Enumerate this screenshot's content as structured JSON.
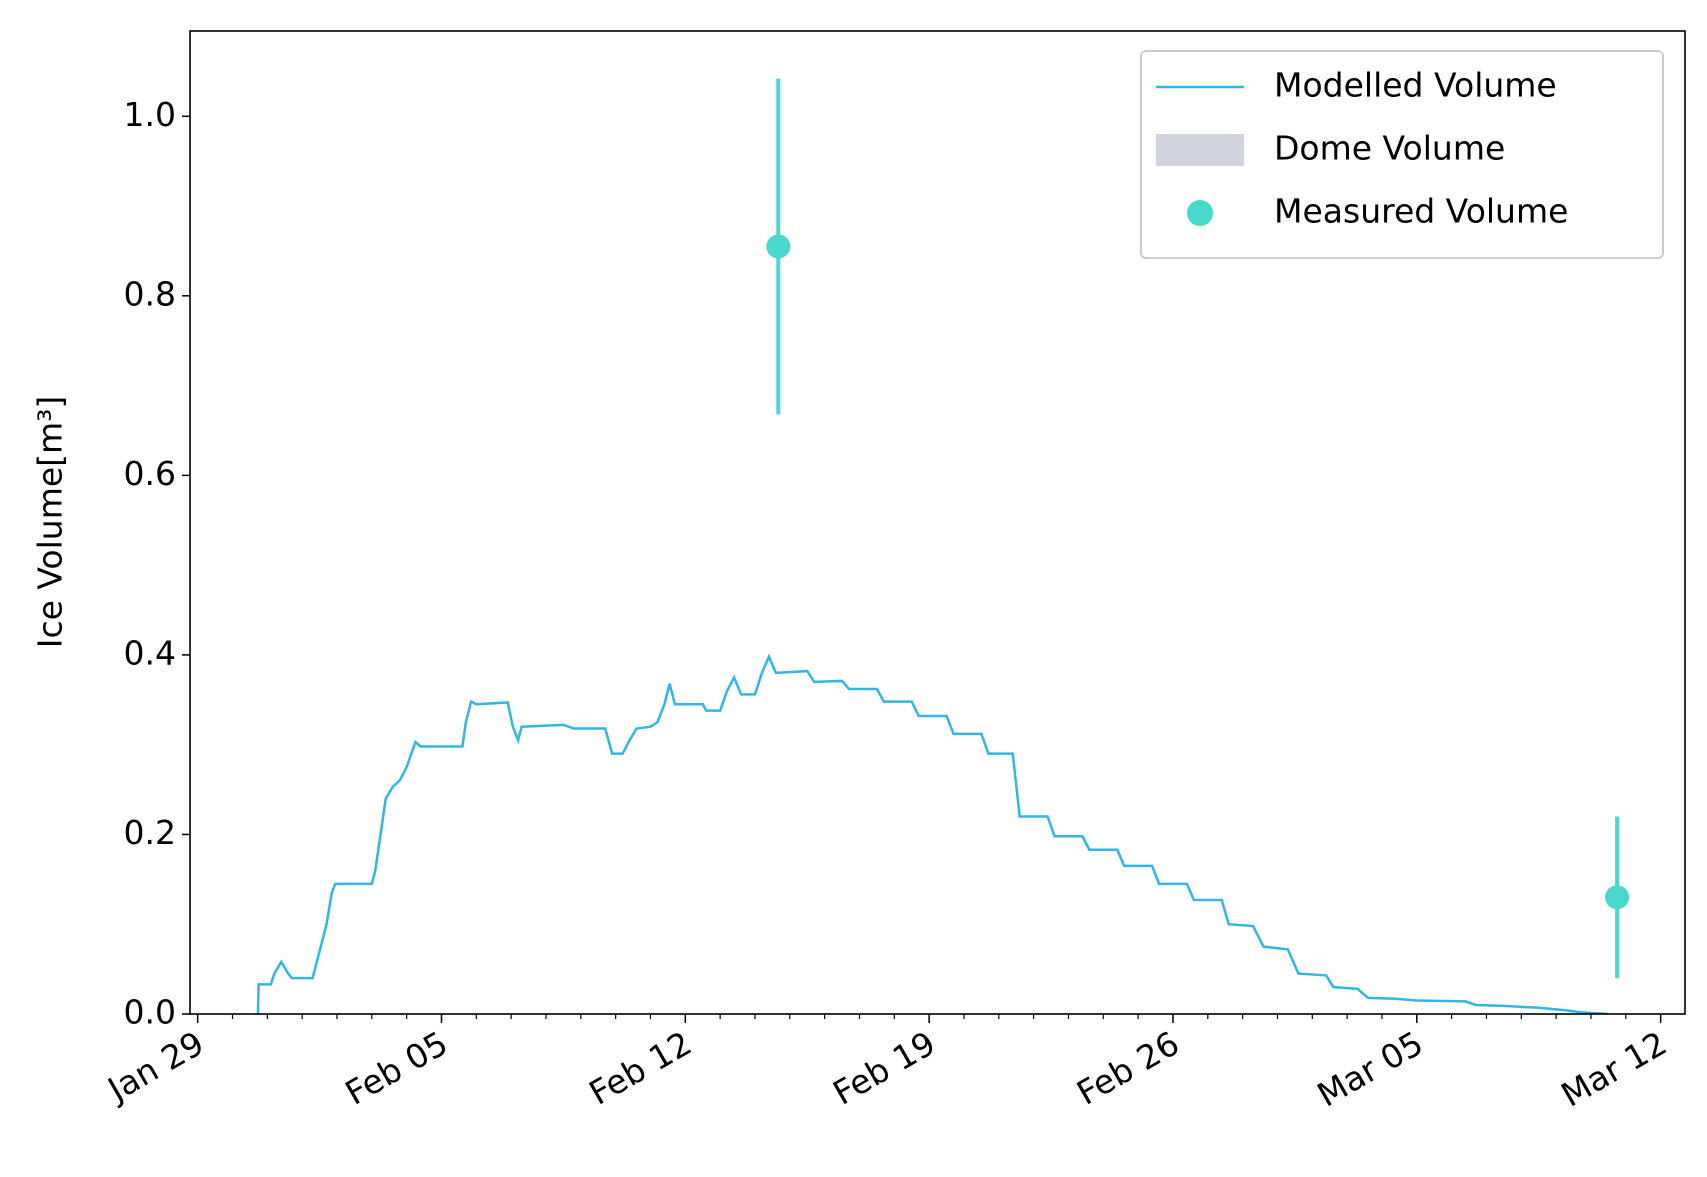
{
  "chart_data": {
    "type": "line",
    "y_label": "Ice Volume[m³]",
    "xlim": [
      -0.22,
      42.7
    ],
    "ylim": [
      0,
      1.095
    ],
    "xticks": [
      {
        "value": 0,
        "label": "Jan 29"
      },
      {
        "value": 7,
        "label": "Feb 05"
      },
      {
        "value": 14,
        "label": "Feb 12"
      },
      {
        "value": 21,
        "label": "Feb 19"
      },
      {
        "value": 28,
        "label": "Feb 26"
      },
      {
        "value": 35,
        "label": "Mar 05"
      },
      {
        "value": 42,
        "label": "Mar 12"
      }
    ],
    "xminorticks": [
      1,
      2,
      3,
      4,
      5,
      6,
      8,
      9,
      10,
      11,
      12,
      13,
      15,
      16,
      17,
      18,
      19,
      20,
      22,
      23,
      24,
      25,
      26,
      27,
      29,
      30,
      31,
      32,
      33,
      34,
      36,
      37,
      38,
      39,
      40,
      41
    ],
    "yticks": [
      {
        "value": 0,
        "label": "0.0"
      },
      {
        "value": 0.2,
        "label": "0.2"
      },
      {
        "value": 0.4,
        "label": "0.4"
      },
      {
        "value": 0.6,
        "label": "0.6"
      },
      {
        "value": 0.8,
        "label": "0.8"
      },
      {
        "value": 1,
        "label": "1.0"
      }
    ],
    "legend": "upper right",
    "series": [
      {
        "name": "Modelled Volume",
        "color": "#33b5e5",
        "type": "line",
        "x": [
          1.73,
          1.75,
          2.1,
          2.2,
          2.4,
          2.6,
          2.7,
          3.3,
          3.5,
          3.7,
          3.85,
          3.95,
          5.0,
          5.1,
          5.25,
          5.4,
          5.6,
          5.8,
          6.0,
          6.25,
          6.4,
          7.6,
          7.7,
          7.85,
          8.0,
          8.9,
          9.05,
          9.2,
          9.3,
          10.5,
          10.8,
          11.7,
          11.9,
          12.2,
          12.4,
          12.6,
          13.0,
          13.2,
          13.4,
          13.55,
          13.7,
          14.5,
          14.6,
          15.0,
          15.2,
          15.4,
          15.6,
          16.0,
          16.2,
          16.4,
          16.6,
          17.5,
          17.7,
          18.5,
          18.7,
          19.5,
          19.7,
          20.5,
          20.7,
          21.5,
          21.7,
          22.5,
          22.7,
          23.4,
          23.6,
          24.4,
          24.6,
          25.4,
          25.6,
          26.4,
          26.6,
          27.4,
          27.6,
          28.4,
          28.6,
          29.4,
          29.6,
          30.3,
          30.6,
          31.3,
          31.6,
          32.4,
          32.6,
          33.3,
          33.6,
          34.4,
          35.0,
          36.4,
          36.7,
          37.5,
          38.5,
          39.3,
          39.7,
          40.5
        ],
        "values": [
          0,
          0.033,
          0.033,
          0.045,
          0.058,
          0.045,
          0.04,
          0.04,
          0.07,
          0.1,
          0.135,
          0.145,
          0.145,
          0.16,
          0.2,
          0.24,
          0.253,
          0.26,
          0.275,
          0.303,
          0.298,
          0.298,
          0.325,
          0.348,
          0.345,
          0.347,
          0.32,
          0.305,
          0.32,
          0.322,
          0.318,
          0.318,
          0.29,
          0.29,
          0.305,
          0.318,
          0.32,
          0.325,
          0.345,
          0.368,
          0.345,
          0.345,
          0.338,
          0.338,
          0.36,
          0.375,
          0.356,
          0.356,
          0.38,
          0.398,
          0.38,
          0.382,
          0.37,
          0.371,
          0.362,
          0.362,
          0.348,
          0.348,
          0.332,
          0.332,
          0.312,
          0.312,
          0.29,
          0.29,
          0.22,
          0.22,
          0.198,
          0.198,
          0.183,
          0.183,
          0.165,
          0.165,
          0.145,
          0.145,
          0.127,
          0.127,
          0.1,
          0.098,
          0.075,
          0.072,
          0.045,
          0.043,
          0.03,
          0.028,
          0.018,
          0.017,
          0.015,
          0.014,
          0.01,
          0.009,
          0.007,
          0.004,
          0.002,
          0
        ]
      },
      {
        "name": "Dome Volume",
        "color": "#d1d5db",
        "type": "area"
      },
      {
        "name": "Measured Volume",
        "color": "#48d9cc",
        "type": "scatter",
        "x": [
          16.67,
          40.75
        ],
        "values": [
          0.855,
          0.13
        ],
        "errors": [
          0.187,
          0.09
        ]
      }
    ]
  }
}
